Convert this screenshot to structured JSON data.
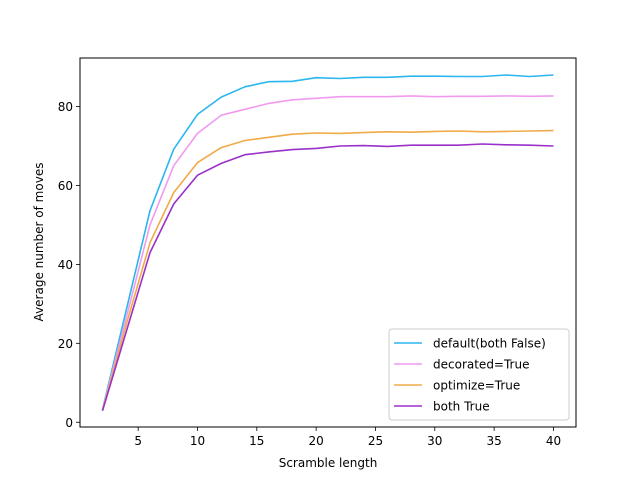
{
  "chart_data": {
    "type": "line",
    "title": "",
    "xlabel": "Scramble length",
    "ylabel": "Average number of moves",
    "xlim": [
      0.1,
      41.9
    ],
    "ylim": [
      -1.2,
      92.3
    ],
    "xticks": [
      5,
      10,
      15,
      20,
      25,
      30,
      35,
      40
    ],
    "yticks": [
      0,
      20,
      40,
      60,
      80
    ],
    "grid": false,
    "legend_position": "lower right",
    "x": [
      2,
      4,
      6,
      8,
      10,
      12,
      14,
      16,
      18,
      20,
      22,
      24,
      26,
      28,
      30,
      32,
      34,
      36,
      38,
      40
    ],
    "series": [
      {
        "name": "default(both False)",
        "color": "#2bb6ee",
        "values": [
          3.2,
          28.5,
          53.6,
          69.2,
          78.0,
          82.4,
          85.0,
          86.3,
          86.4,
          87.3,
          87.1,
          87.4,
          87.4,
          87.7,
          87.7,
          87.6,
          87.6,
          88.0,
          87.6,
          88.0
        ]
      },
      {
        "name": "decorated=True",
        "color": "#f09bf0",
        "values": [
          3.1,
          26.5,
          50.0,
          65.0,
          73.2,
          77.8,
          79.3,
          80.8,
          81.7,
          82.1,
          82.5,
          82.5,
          82.5,
          82.7,
          82.5,
          82.6,
          82.6,
          82.7,
          82.6,
          82.7
        ]
      },
      {
        "name": "optimize=True",
        "color": "#f0aa48",
        "values": [
          3.0,
          24.8,
          45.5,
          58.2,
          65.8,
          69.6,
          71.4,
          72.2,
          73.0,
          73.3,
          73.2,
          73.4,
          73.6,
          73.5,
          73.7,
          73.8,
          73.6,
          73.7,
          73.8,
          73.9
        ]
      },
      {
        "name": "both True",
        "color": "#9a30c8",
        "values": [
          2.9,
          23.0,
          43.0,
          55.3,
          62.6,
          65.6,
          67.8,
          68.5,
          69.1,
          69.4,
          70.0,
          70.1,
          69.9,
          70.2,
          70.2,
          70.2,
          70.5,
          70.3,
          70.2,
          70.0
        ]
      }
    ]
  }
}
